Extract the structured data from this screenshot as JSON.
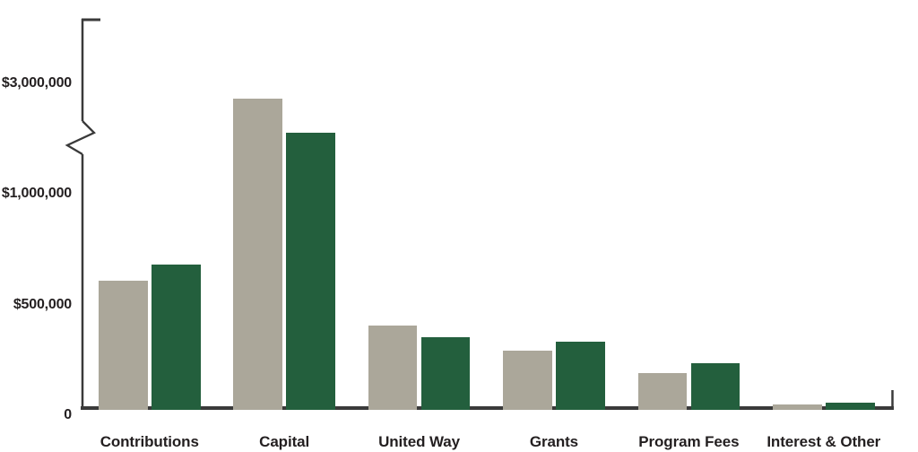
{
  "colors": {
    "background": "#ffffff",
    "text": "#231f20",
    "axis": "#3a3a3a",
    "bar_gray": "#aba79a",
    "bar_green": "#235f3d"
  },
  "chart_data": {
    "type": "bar",
    "title": "",
    "xlabel": "",
    "ylabel": "",
    "categories": [
      "Contributions",
      "Capital",
      "United Way",
      "Grants",
      "Program Fees",
      "Interest & Other"
    ],
    "series": [
      {
        "name": "gray",
        "color": "#aba79a",
        "values": [
          595000,
          2930000,
          385000,
          268000,
          165000,
          15000
        ]
      },
      {
        "name": "green",
        "color": "#235f3d",
        "values": [
          670000,
          2250000,
          330000,
          310000,
          210000,
          25000
        ]
      }
    ],
    "y_ticks": [
      {
        "label": "$3,000,000",
        "value": 3000000
      },
      {
        "label": "$1,000,000",
        "value": 1000000
      },
      {
        "label": "$500,000",
        "value": 500000
      },
      {
        "label": "0",
        "value": 0
      }
    ],
    "axis": {
      "ylim": [
        0,
        3000000
      ],
      "y_axis_break": true,
      "break_between": [
        1184000,
        2824000
      ],
      "grid": false,
      "legend": "none",
      "currency": "USD"
    }
  }
}
